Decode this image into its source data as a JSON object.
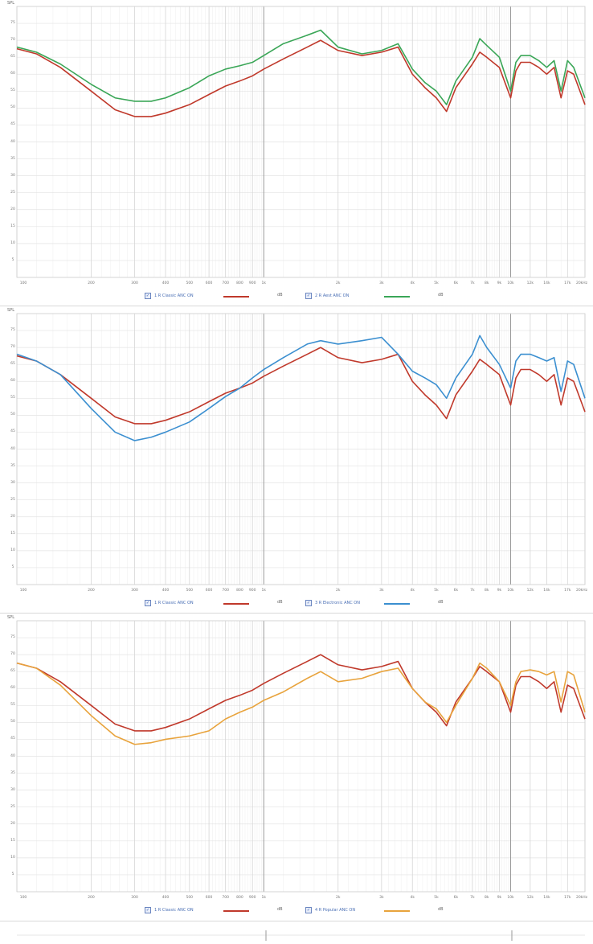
{
  "chart_data": [
    {
      "type": "line",
      "ylabel": "SPL",
      "xscale": "log",
      "xlim": [
        100,
        20000
      ],
      "ylim": [
        0,
        80
      ],
      "x_tick_labels": [
        "100",
        "200",
        "300",
        "400",
        "500",
        "600",
        "700",
        "800",
        "900",
        "1k",
        "2k",
        "3k",
        "4k",
        "5k",
        "6k",
        "7k",
        "8k",
        "9k",
        "10k",
        "12k",
        "14k",
        "17k",
        "20kHz"
      ],
      "y_tick_labels": [
        "75",
        "70",
        "65",
        "60",
        "55",
        "50",
        "45",
        "40",
        "35",
        "30",
        "25",
        "20",
        "15",
        "10",
        "5"
      ],
      "grid": true,
      "legend": "bottom",
      "series": [
        {
          "name": "1 R Classic ANC ON",
          "unit": "dB",
          "color": "#c0392b",
          "x": [
            100,
            120,
            150,
            200,
            250,
            300,
            350,
            400,
            500,
            600,
            700,
            800,
            900,
            1000,
            1200,
            1500,
            1700,
            2000,
            2500,
            3000,
            3500,
            4000,
            4500,
            5000,
            5500,
            6000,
            7000,
            7500,
            8000,
            9000,
            10000,
            10500,
            11000,
            12000,
            13000,
            14000,
            15000,
            16000,
            17000,
            18000,
            20000
          ],
          "y": [
            67.5,
            66,
            62,
            55,
            49.5,
            47.5,
            47.5,
            48.5,
            51,
            54,
            56.5,
            58,
            59.5,
            61.5,
            64.5,
            68,
            70,
            67,
            65.5,
            66.5,
            68,
            60,
            56,
            53,
            49,
            56,
            63,
            66.5,
            65,
            62,
            53,
            61,
            63.5,
            63.5,
            62,
            60,
            62,
            53,
            61,
            60,
            51
          ]
        },
        {
          "name": "2 R Aest ANC ON",
          "unit": "dB",
          "color": "#3aa657",
          "x": [
            100,
            120,
            150,
            200,
            250,
            300,
            350,
            400,
            500,
            600,
            700,
            800,
            900,
            1000,
            1200,
            1500,
            1700,
            2000,
            2500,
            3000,
            3500,
            4000,
            4500,
            5000,
            5500,
            6000,
            7000,
            7500,
            8000,
            9000,
            10000,
            10500,
            11000,
            12000,
            13000,
            14000,
            15000,
            16000,
            17000,
            18000,
            20000
          ],
          "y": [
            68,
            66.5,
            63,
            57,
            53,
            52,
            52,
            53,
            56,
            59.5,
            61.5,
            62.5,
            63.5,
            65.5,
            69,
            71.5,
            73,
            68,
            66,
            67,
            69,
            61.5,
            57.5,
            55,
            51,
            58,
            65,
            70.5,
            68.5,
            65,
            55,
            63.5,
            65.5,
            65.5,
            64,
            62,
            64,
            55,
            64,
            62,
            53
          ]
        }
      ]
    },
    {
      "type": "line",
      "ylabel": "SPL",
      "xscale": "log",
      "xlim": [
        100,
        20000
      ],
      "ylim": [
        0,
        80
      ],
      "x_tick_labels": [
        "100",
        "200",
        "300",
        "400",
        "500",
        "600",
        "700",
        "800",
        "900",
        "1k",
        "2k",
        "3k",
        "4k",
        "5k",
        "6k",
        "7k",
        "8k",
        "9k",
        "10k",
        "12k",
        "14k",
        "17k",
        "20kHz"
      ],
      "y_tick_labels": [
        "75",
        "70",
        "65",
        "60",
        "55",
        "50",
        "45",
        "40",
        "35",
        "30",
        "25",
        "20",
        "15",
        "10",
        "5"
      ],
      "grid": true,
      "legend": "bottom",
      "series": [
        {
          "name": "1 R Classic ANC ON",
          "unit": "dB",
          "color": "#c0392b",
          "x": [
            100,
            120,
            150,
            200,
            250,
            300,
            350,
            400,
            500,
            600,
            700,
            800,
            900,
            1000,
            1200,
            1500,
            1700,
            2000,
            2500,
            3000,
            3500,
            4000,
            4500,
            5000,
            5500,
            6000,
            7000,
            7500,
            8000,
            9000,
            10000,
            10500,
            11000,
            12000,
            13000,
            14000,
            15000,
            16000,
            17000,
            18000,
            20000
          ],
          "y": [
            67.5,
            66,
            62,
            55,
            49.5,
            47.5,
            47.5,
            48.5,
            51,
            54,
            56.5,
            58,
            59.5,
            61.5,
            64.5,
            68,
            70,
            67,
            65.5,
            66.5,
            68,
            60,
            56,
            53,
            49,
            56,
            63,
            66.5,
            65,
            62,
            53,
            61,
            63.5,
            63.5,
            62,
            60,
            62,
            53,
            61,
            60,
            51
          ]
        },
        {
          "name": "3 R Electronic ANC ON",
          "unit": "dB",
          "color": "#3b8fd0",
          "x": [
            100,
            120,
            150,
            200,
            250,
            300,
            350,
            400,
            500,
            600,
            700,
            800,
            900,
            1000,
            1200,
            1500,
            1700,
            2000,
            2500,
            3000,
            3500,
            4000,
            4500,
            5000,
            5500,
            6000,
            7000,
            7500,
            8000,
            9000,
            10000,
            10500,
            11000,
            12000,
            13000,
            14000,
            15000,
            16000,
            17000,
            18000,
            20000
          ],
          "y": [
            68,
            66,
            62,
            52,
            45,
            42.5,
            43.5,
            45,
            48,
            52,
            55.5,
            58,
            61,
            63.5,
            67,
            71,
            72,
            71,
            72,
            73,
            68,
            63,
            61,
            59,
            55,
            61,
            68,
            73.5,
            70,
            65,
            58,
            66,
            68,
            68,
            67,
            66,
            67,
            57,
            66,
            65,
            55
          ]
        }
      ]
    },
    {
      "type": "line",
      "ylabel": "SPL",
      "xscale": "log",
      "xlim": [
        100,
        20000
      ],
      "ylim": [
        0,
        80
      ],
      "x_tick_labels": [
        "100",
        "200",
        "300",
        "400",
        "500",
        "600",
        "700",
        "800",
        "900",
        "1k",
        "2k",
        "3k",
        "4k",
        "5k",
        "6k",
        "7k",
        "8k",
        "9k",
        "10k",
        "12k",
        "14k",
        "17k",
        "20kHz"
      ],
      "y_tick_labels": [
        "75",
        "70",
        "65",
        "60",
        "55",
        "50",
        "45",
        "40",
        "35",
        "30",
        "25",
        "20",
        "15",
        "10",
        "5"
      ],
      "grid": true,
      "legend": "bottom",
      "series": [
        {
          "name": "1 R Classic ANC ON",
          "unit": "dB",
          "color": "#c0392b",
          "x": [
            100,
            120,
            150,
            200,
            250,
            300,
            350,
            400,
            500,
            600,
            700,
            800,
            900,
            1000,
            1200,
            1500,
            1700,
            2000,
            2500,
            3000,
            3500,
            4000,
            4500,
            5000,
            5500,
            6000,
            7000,
            7500,
            8000,
            9000,
            10000,
            10500,
            11000,
            12000,
            13000,
            14000,
            15000,
            16000,
            17000,
            18000,
            20000
          ],
          "y": [
            67.5,
            66,
            62,
            55,
            49.5,
            47.5,
            47.5,
            48.5,
            51,
            54,
            56.5,
            58,
            59.5,
            61.5,
            64.5,
            68,
            70,
            67,
            65.5,
            66.5,
            68,
            60,
            56,
            53,
            49,
            56,
            63,
            66.5,
            65,
            62,
            53,
            61,
            63.5,
            63.5,
            62,
            60,
            62,
            53,
            61,
            60,
            51
          ]
        },
        {
          "name": "4 R Popular ANC ON",
          "unit": "dB",
          "color": "#e8a33c",
          "x": [
            100,
            120,
            150,
            200,
            250,
            300,
            350,
            400,
            500,
            600,
            700,
            800,
            900,
            1000,
            1200,
            1500,
            1700,
            2000,
            2500,
            3000,
            3500,
            4000,
            4500,
            5000,
            5500,
            6000,
            7000,
            7500,
            8000,
            9000,
            10000,
            10500,
            11000,
            12000,
            13000,
            14000,
            15000,
            16000,
            17000,
            18000,
            20000
          ],
          "y": [
            67.5,
            66,
            61,
            52,
            46,
            43.5,
            44,
            45,
            46,
            47.5,
            51,
            53,
            54.5,
            56.5,
            59,
            63,
            65,
            62,
            63,
            65,
            66,
            60,
            56,
            54,
            50,
            55,
            63,
            67.5,
            66,
            62,
            55,
            62,
            65,
            65.5,
            65,
            64,
            65,
            56,
            65,
            64,
            53
          ]
        }
      ]
    }
  ]
}
